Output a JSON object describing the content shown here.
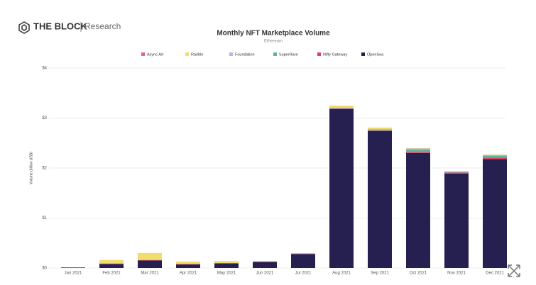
{
  "brand": "THE BLOCK",
  "brand_sub": "Research",
  "chart_data": {
    "type": "stacked-bar",
    "title": "Monthly NFT Marketplace Volume",
    "subtitle": "Ethereum",
    "y_label": "Volume (billion USD)",
    "categories": [
      "Jan 2021",
      "Feb 2021",
      "Mar 2021",
      "Apr 2021",
      "May 2021",
      "Jun 2021",
      "Jul 2021",
      "Aug 2021",
      "Sep 2021",
      "Oct 2021",
      "Nov 2021",
      "Dec 2021"
    ],
    "series": [
      {
        "name": "OpenSea",
        "color": "#262050",
        "values": [
          0.01,
          0.08,
          0.15,
          0.07,
          0.09,
          0.12,
          0.28,
          3.18,
          2.74,
          2.3,
          1.89,
          2.18
        ]
      },
      {
        "name": "Nifty Gateway",
        "color": "#d9455f",
        "values": [
          0,
          0.01,
          0.01,
          0.01,
          0.01,
          0.01,
          0.01,
          0.01,
          0.01,
          0.02,
          0.02,
          0.03
        ]
      },
      {
        "name": "SuperRare",
        "color": "#5fb3a1",
        "values": [
          0,
          0,
          0,
          0,
          0,
          0,
          0,
          0.01,
          0.02,
          0.05,
          0.01,
          0.04
        ]
      },
      {
        "name": "Foundation",
        "color": "#b9b3e8",
        "values": [
          0,
          0,
          0,
          0,
          0,
          0,
          0,
          0.01,
          0.01,
          0.02,
          0.01,
          0.01
        ]
      },
      {
        "name": "Rarible",
        "color": "#f2dc6b",
        "values": [
          0,
          0.07,
          0.14,
          0.05,
          0.04,
          0,
          0,
          0.04,
          0.03,
          0.01,
          0.01,
          0.01
        ]
      },
      {
        "name": "Async Art",
        "color": "#e8609a",
        "values": [
          0,
          0,
          0,
          0,
          0,
          0,
          0,
          0,
          0,
          0,
          0,
          0
        ]
      }
    ],
    "legend_order": [
      5,
      4,
      3,
      2,
      1,
      0
    ],
    "ylim": [
      0,
      4
    ],
    "yticks": [
      {
        "value": 0,
        "label": "$0"
      },
      {
        "value": 1,
        "label": "$1"
      },
      {
        "value": 2,
        "label": "$2"
      },
      {
        "value": 3,
        "label": "$3"
      },
      {
        "value": 4,
        "label": "$4"
      }
    ],
    "grid": true
  }
}
